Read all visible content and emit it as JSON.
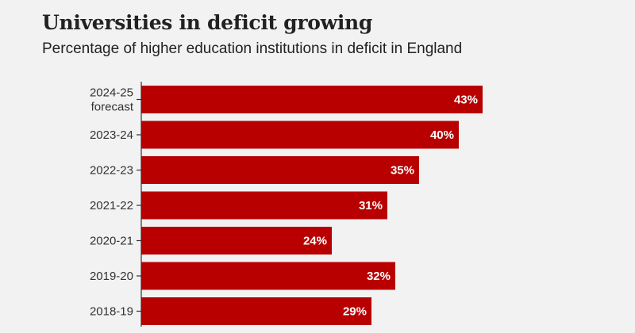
{
  "header": {
    "title": "Universities in deficit growing",
    "subtitle": "Percentage of higher education institutions in deficit in England"
  },
  "colors": {
    "bar": "#b80000",
    "background": "#f2f2f2",
    "axis": "#333333",
    "text": "#222222"
  },
  "chart_data": {
    "type": "bar",
    "orientation": "horizontal",
    "title": "Universities in deficit growing",
    "subtitle": "Percentage of higher education institutions in deficit in England",
    "categories": [
      "2024-25 forecast",
      "2023-24",
      "2022-23",
      "2021-22",
      "2020-21",
      "2019-20",
      "2018-19"
    ],
    "category_lines": [
      [
        "2024-25",
        "forecast"
      ],
      [
        "2023-24"
      ],
      [
        "2022-23"
      ],
      [
        "2021-22"
      ],
      [
        "2020-21"
      ],
      [
        "2019-20"
      ],
      [
        "2018-19"
      ]
    ],
    "values": [
      43,
      40,
      35,
      31,
      24,
      32,
      29
    ],
    "value_labels": [
      "43%",
      "40%",
      "35%",
      "31%",
      "24%",
      "32%",
      "29%"
    ],
    "unit": "%",
    "xlim": [
      0,
      43
    ],
    "grid": false,
    "legend": "none"
  }
}
